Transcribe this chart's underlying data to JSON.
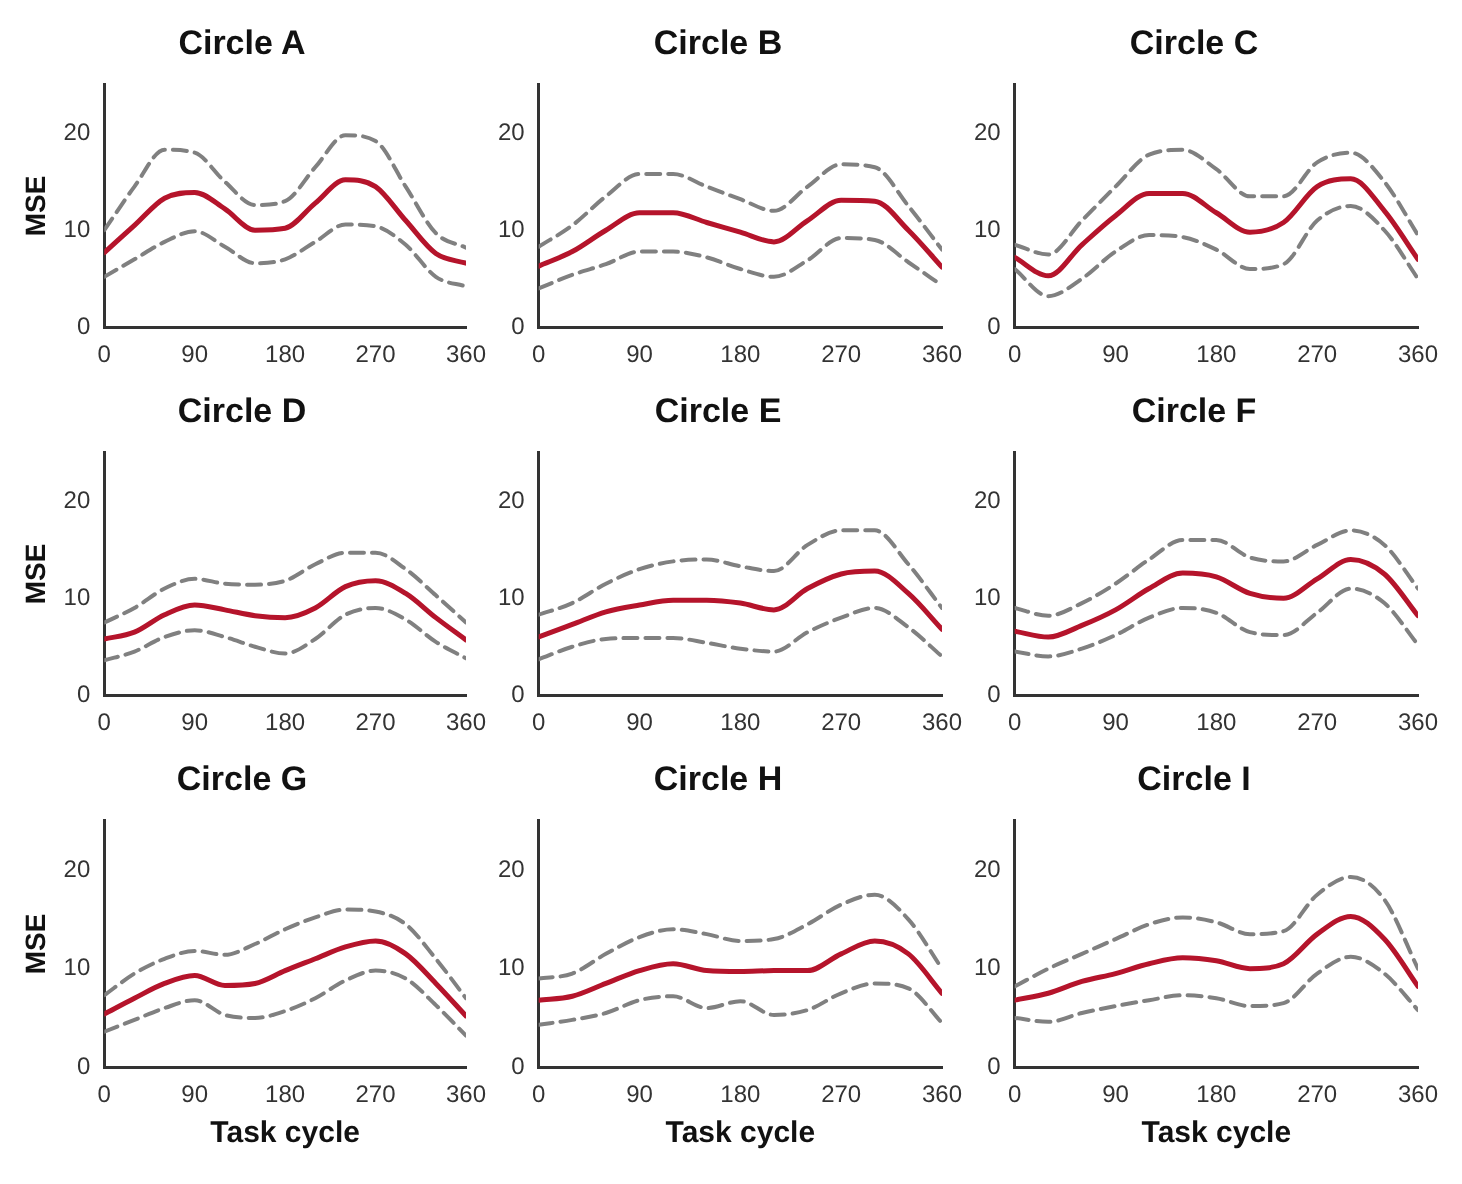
{
  "chart_data": [
    {
      "type": "line",
      "title": "Circle A",
      "ylabel": "MSE",
      "x": [
        0,
        30,
        60,
        90,
        120,
        150,
        180,
        210,
        240,
        270,
        300,
        330,
        360
      ],
      "xlim": [
        0,
        360
      ],
      "xticks": [
        0,
        90,
        180,
        270,
        360
      ],
      "ylim": [
        0,
        25
      ],
      "yticks": [
        0,
        10,
        20
      ],
      "marker": "none",
      "legend": false,
      "series": [
        {
          "color": "#808080",
          "line_style": "dashed",
          "values": [
            10,
            14.5,
            18.3,
            18,
            15,
            12.6,
            13,
            16.5,
            19.8,
            19.2,
            14.5,
            9.7,
            8.2
          ]
        },
        {
          "color": "#808080",
          "line_style": "dashed",
          "values": [
            5.2,
            7,
            8.8,
            9.9,
            8.3,
            6.6,
            7,
            8.8,
            10.6,
            10.4,
            8.5,
            5.2,
            4.2
          ]
        },
        {
          "color": "#b5142b",
          "line_style": "solid",
          "values": [
            7.7,
            10.5,
            13.3,
            13.9,
            12.2,
            10,
            10.2,
            12.8,
            15.2,
            14.5,
            11,
            7.6,
            6.6
          ]
        }
      ]
    },
    {
      "type": "line",
      "title": "Circle B",
      "x": [
        0,
        30,
        60,
        90,
        120,
        150,
        180,
        210,
        240,
        270,
        300,
        330,
        360
      ],
      "xlim": [
        0,
        360
      ],
      "xticks": [
        0,
        90,
        180,
        270,
        360
      ],
      "ylim": [
        0,
        25
      ],
      "yticks": [
        0,
        10,
        20
      ],
      "marker": "none",
      "legend": false,
      "series": [
        {
          "color": "#808080",
          "line_style": "dashed",
          "values": [
            8.3,
            10.5,
            13.5,
            15.8,
            15.8,
            14.5,
            13.2,
            12,
            14.5,
            16.8,
            16.5,
            12.5,
            8
          ]
        },
        {
          "color": "#808080",
          "line_style": "dashed",
          "values": [
            4,
            5.4,
            6.5,
            7.8,
            7.8,
            7.2,
            6,
            5.2,
            6.9,
            9.2,
            9,
            6.7,
            4.3
          ]
        },
        {
          "color": "#b5142b",
          "line_style": "solid",
          "values": [
            6.3,
            7.8,
            10,
            11.8,
            11.8,
            10.8,
            9.8,
            8.8,
            11,
            13.1,
            13,
            10,
            6.2
          ]
        }
      ]
    },
    {
      "type": "line",
      "title": "Circle C",
      "x": [
        0,
        30,
        60,
        90,
        120,
        150,
        180,
        210,
        240,
        270,
        300,
        330,
        360
      ],
      "xlim": [
        0,
        360
      ],
      "xticks": [
        0,
        90,
        180,
        270,
        360
      ],
      "ylim": [
        0,
        25
      ],
      "yticks": [
        0,
        10,
        20
      ],
      "marker": "none",
      "legend": false,
      "series": [
        {
          "color": "#808080",
          "line_style": "dashed",
          "values": [
            8.5,
            7.5,
            11,
            14.5,
            17.8,
            18.3,
            16.3,
            13.5,
            13.5,
            17,
            18,
            15,
            9.5
          ]
        },
        {
          "color": "#808080",
          "line_style": "dashed",
          "values": [
            6,
            3.2,
            5,
            7.8,
            9.5,
            9.3,
            8,
            6,
            6.5,
            11,
            12.5,
            10,
            5
          ]
        },
        {
          "color": "#b5142b",
          "line_style": "solid",
          "values": [
            7.2,
            5.3,
            8.5,
            11.5,
            13.8,
            13.8,
            11.8,
            9.8,
            10.8,
            14.5,
            15.3,
            12,
            7
          ]
        }
      ]
    },
    {
      "type": "line",
      "title": "Circle D",
      "ylabel": "MSE",
      "x": [
        0,
        30,
        60,
        90,
        120,
        150,
        180,
        210,
        240,
        270,
        300,
        330,
        360
      ],
      "xlim": [
        0,
        360
      ],
      "xticks": [
        0,
        90,
        180,
        270,
        360
      ],
      "ylim": [
        0,
        25
      ],
      "yticks": [
        0,
        10,
        20
      ],
      "marker": "none",
      "legend": false,
      "series": [
        {
          "color": "#808080",
          "line_style": "dashed",
          "values": [
            7.5,
            9,
            11,
            12,
            11.5,
            11.4,
            11.8,
            13.5,
            14.7,
            14.7,
            13,
            10.3,
            7.5
          ]
        },
        {
          "color": "#808080",
          "line_style": "dashed",
          "values": [
            3.6,
            4.5,
            6,
            6.7,
            6,
            5,
            4.3,
            5.8,
            8.3,
            9,
            7.8,
            5.5,
            3.8
          ]
        },
        {
          "color": "#b5142b",
          "line_style": "solid",
          "values": [
            5.8,
            6.5,
            8.3,
            9.3,
            8.8,
            8.2,
            8,
            9,
            11.2,
            11.8,
            10.5,
            8,
            5.7
          ]
        }
      ]
    },
    {
      "type": "line",
      "title": "Circle E",
      "x": [
        0,
        30,
        60,
        90,
        120,
        150,
        180,
        210,
        240,
        270,
        300,
        330,
        360
      ],
      "xlim": [
        0,
        360
      ],
      "xticks": [
        0,
        90,
        180,
        270,
        360
      ],
      "ylim": [
        0,
        25
      ],
      "yticks": [
        0,
        10,
        20
      ],
      "marker": "none",
      "legend": false,
      "series": [
        {
          "color": "#808080",
          "line_style": "dashed",
          "values": [
            8.3,
            9.5,
            11.5,
            13,
            13.8,
            14,
            13.3,
            12.8,
            15.5,
            17,
            17,
            13.5,
            9
          ]
        },
        {
          "color": "#808080",
          "line_style": "dashed",
          "values": [
            3.7,
            5,
            5.8,
            5.9,
            5.9,
            5.4,
            4.8,
            4.5,
            6.5,
            8,
            9,
            7,
            4
          ]
        },
        {
          "color": "#b5142b",
          "line_style": "solid",
          "values": [
            6,
            7.3,
            8.6,
            9.3,
            9.8,
            9.8,
            9.5,
            8.8,
            11,
            12.5,
            12.8,
            10.5,
            6.8
          ]
        }
      ]
    },
    {
      "type": "line",
      "title": "Circle F",
      "x": [
        0,
        30,
        60,
        90,
        120,
        150,
        180,
        210,
        240,
        270,
        300,
        330,
        360
      ],
      "xlim": [
        0,
        360
      ],
      "xticks": [
        0,
        90,
        180,
        270,
        360
      ],
      "ylim": [
        0,
        25
      ],
      "yticks": [
        0,
        10,
        20
      ],
      "marker": "none",
      "legend": false,
      "series": [
        {
          "color": "#808080",
          "line_style": "dashed",
          "values": [
            9,
            8.2,
            9.5,
            11.5,
            14,
            16,
            16,
            14.2,
            13.8,
            15.5,
            17,
            15.5,
            11
          ]
        },
        {
          "color": "#808080",
          "line_style": "dashed",
          "values": [
            4.5,
            4,
            4.8,
            6.2,
            8,
            9,
            8.5,
            6.5,
            6.2,
            8.5,
            11,
            9.5,
            5.2
          ]
        },
        {
          "color": "#b5142b",
          "line_style": "solid",
          "values": [
            6.6,
            6,
            7.2,
            8.8,
            11,
            12.6,
            12.2,
            10.5,
            10,
            12,
            14,
            12.5,
            8.2
          ]
        }
      ]
    },
    {
      "type": "line",
      "title": "Circle G",
      "ylabel": "MSE",
      "xlabel": "Task cycle",
      "x": [
        0,
        30,
        60,
        90,
        120,
        150,
        180,
        210,
        240,
        270,
        300,
        330,
        360
      ],
      "xlim": [
        0,
        360
      ],
      "xticks": [
        0,
        90,
        180,
        270,
        360
      ],
      "ylim": [
        0,
        25
      ],
      "yticks": [
        0,
        10,
        20
      ],
      "marker": "none",
      "legend": false,
      "series": [
        {
          "color": "#808080",
          "line_style": "dashed",
          "values": [
            7.3,
            9.5,
            11,
            11.8,
            11.4,
            12.5,
            14,
            15.2,
            16,
            15.8,
            14.5,
            11,
            7
          ]
        },
        {
          "color": "#808080",
          "line_style": "dashed",
          "values": [
            3.6,
            4.8,
            6,
            6.8,
            5.3,
            5,
            5.7,
            7,
            8.8,
            9.8,
            9,
            6.3,
            3.2
          ]
        },
        {
          "color": "#b5142b",
          "line_style": "solid",
          "values": [
            5.4,
            7,
            8.5,
            9.3,
            8.3,
            8.5,
            9.8,
            11,
            12.2,
            12.8,
            11.5,
            8.5,
            5.2
          ]
        }
      ]
    },
    {
      "type": "line",
      "title": "Circle H",
      "xlabel": "Task cycle",
      "x": [
        0,
        30,
        60,
        90,
        120,
        150,
        180,
        210,
        240,
        270,
        300,
        330,
        360
      ],
      "xlim": [
        0,
        360
      ],
      "xticks": [
        0,
        90,
        180,
        270,
        360
      ],
      "ylim": [
        0,
        25
      ],
      "yticks": [
        0,
        10,
        20
      ],
      "marker": "none",
      "legend": false,
      "series": [
        {
          "color": "#808080",
          "line_style": "dashed",
          "values": [
            9,
            9.5,
            11.5,
            13.2,
            14,
            13.5,
            12.8,
            13,
            14.5,
            16.5,
            17.5,
            15,
            10
          ]
        },
        {
          "color": "#808080",
          "line_style": "dashed",
          "values": [
            4.3,
            4.8,
            5.5,
            6.8,
            7.2,
            6,
            6.7,
            5.3,
            5.8,
            7.5,
            8.5,
            8,
            4.5
          ]
        },
        {
          "color": "#b5142b",
          "line_style": "solid",
          "values": [
            6.8,
            7.2,
            8.5,
            9.8,
            10.5,
            9.8,
            9.7,
            9.8,
            9.8,
            11.5,
            12.8,
            11.5,
            7.5
          ]
        }
      ]
    },
    {
      "type": "line",
      "title": "Circle I",
      "xlabel": "Task cycle",
      "x": [
        0,
        30,
        60,
        90,
        120,
        150,
        180,
        210,
        240,
        270,
        300,
        330,
        360
      ],
      "xlim": [
        0,
        360
      ],
      "xticks": [
        0,
        90,
        180,
        270,
        360
      ],
      "ylim": [
        0,
        25
      ],
      "yticks": [
        0,
        10,
        20
      ],
      "marker": "none",
      "legend": false,
      "series": [
        {
          "color": "#808080",
          "line_style": "dashed",
          "values": [
            8.2,
            10,
            11.5,
            13,
            14.5,
            15.2,
            14.7,
            13.5,
            13.8,
            17.5,
            19.3,
            17,
            10
          ]
        },
        {
          "color": "#808080",
          "line_style": "dashed",
          "values": [
            5,
            4.6,
            5.5,
            6.2,
            6.8,
            7.3,
            7,
            6.2,
            6.5,
            9.5,
            11.2,
            9.5,
            5.8
          ]
        },
        {
          "color": "#b5142b",
          "line_style": "solid",
          "values": [
            6.8,
            7.5,
            8.7,
            9.5,
            10.5,
            11.1,
            10.8,
            10,
            10.5,
            13.5,
            15.3,
            13,
            8.2
          ]
        }
      ]
    }
  ]
}
